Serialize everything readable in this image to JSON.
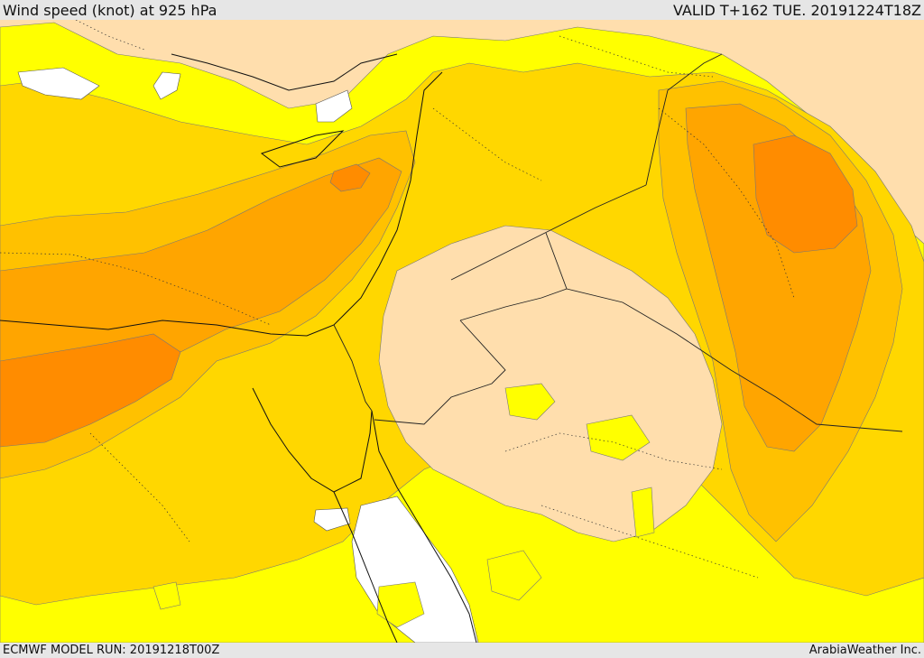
{
  "header": {
    "title": "Wind speed (knot) at 925 hPa",
    "valid": "VALID T+162 TUE. 20191224T18Z"
  },
  "footer": {
    "model_run": "ECMWF MODEL RUN: 20191218T00Z",
    "credit": "ArabiaWeather Inc."
  },
  "map": {
    "fill_colors": {
      "calm_sea": "#ffffff",
      "light_land": "#ffdead",
      "yellow": "#ffff00",
      "gold": "#ffd700",
      "orange_light": "#ffc100",
      "orange": "#ffa500",
      "orange_dark": "#ff8c00"
    }
  }
}
